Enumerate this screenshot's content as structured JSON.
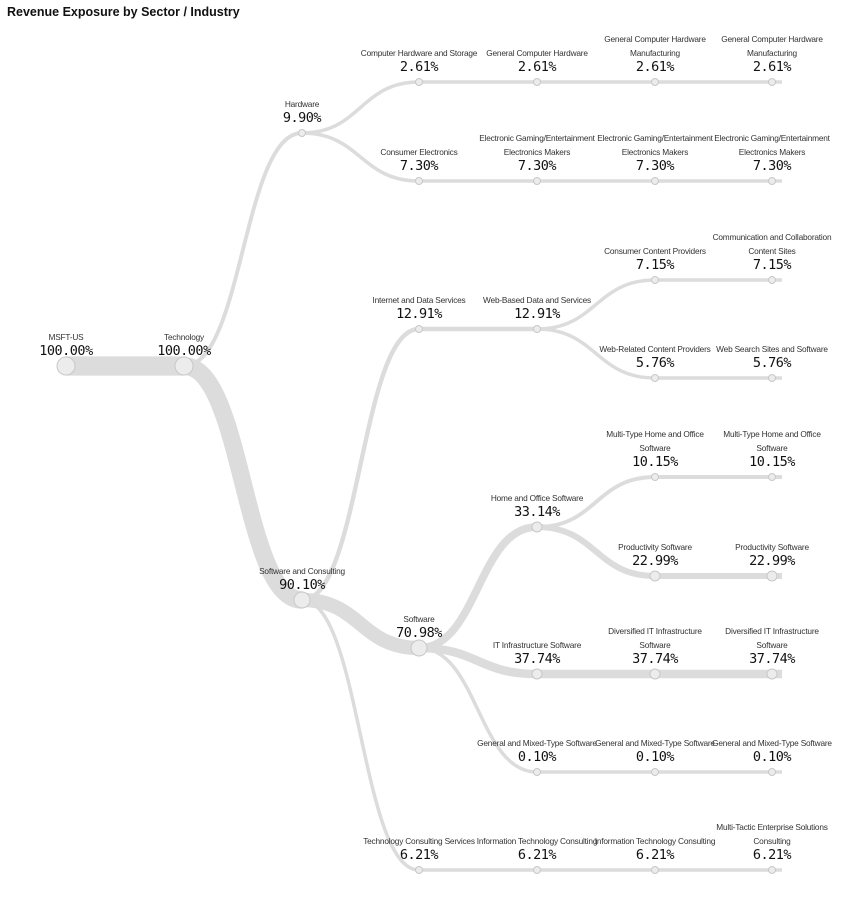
{
  "title": "Revenue Exposure by Sector / Industry",
  "tree": [
    {
      "id": "msft",
      "name": "MSFT-US",
      "value": "100.00%",
      "weight": 100,
      "parent": null
    },
    {
      "id": "tech",
      "name": "Technology",
      "value": "100.00%",
      "weight": 100,
      "parent": "msft"
    },
    {
      "id": "hw",
      "name": "Hardware",
      "value": "9.90%",
      "weight": 9.9,
      "parent": "tech"
    },
    {
      "id": "sc",
      "name": "Software and Consulting",
      "value": "90.10%",
      "weight": 90.1,
      "parent": "tech"
    },
    {
      "id": "chs",
      "name": "Computer Hardware and Storage",
      "value": "2.61%",
      "weight": 2.61,
      "parent": "hw"
    },
    {
      "id": "ce",
      "name": "Consumer Electronics",
      "value": "7.30%",
      "weight": 7.3,
      "parent": "hw"
    },
    {
      "id": "ids",
      "name": "Internet and Data Services",
      "value": "12.91%",
      "weight": 12.91,
      "parent": "sc"
    },
    {
      "id": "sw",
      "name": "Software",
      "value": "70.98%",
      "weight": 70.98,
      "parent": "sc"
    },
    {
      "id": "tcs",
      "name": "Technology Consulting Services",
      "value": "6.21%",
      "weight": 6.21,
      "parent": "sc"
    },
    {
      "id": "gch",
      "name": "General Computer Hardware",
      "value": "2.61%",
      "weight": 2.61,
      "parent": "chs"
    },
    {
      "id": "egem",
      "name": "Electronic Gaming/Entertainment Electronics Makers",
      "value": "7.30%",
      "weight": 7.3,
      "parent": "ce"
    },
    {
      "id": "wbds",
      "name": "Web-Based Data and Services",
      "value": "12.91%",
      "weight": 12.91,
      "parent": "ids"
    },
    {
      "id": "hos",
      "name": "Home and Office Software",
      "value": "33.14%",
      "weight": 33.14,
      "parent": "sw"
    },
    {
      "id": "itis",
      "name": "IT Infrastructure Software",
      "value": "37.74%",
      "weight": 37.74,
      "parent": "sw"
    },
    {
      "id": "gmts",
      "name": "General and Mixed-Type Software",
      "value": "0.10%",
      "weight": 0.1,
      "parent": "sw"
    },
    {
      "id": "itc",
      "name": "Information Technology Consulting",
      "value": "6.21%",
      "weight": 6.21,
      "parent": "tcs"
    },
    {
      "id": "gchm1",
      "name": "General Computer Hardware Manufacturing",
      "value": "2.61%",
      "weight": 2.61,
      "parent": "gch"
    },
    {
      "id": "egem2",
      "name": "Electronic Gaming/Entertainment Electronics Makers",
      "value": "7.30%",
      "weight": 7.3,
      "parent": "egem"
    },
    {
      "id": "ccp",
      "name": "Consumer Content Providers",
      "value": "7.15%",
      "weight": 7.15,
      "parent": "wbds"
    },
    {
      "id": "wrcp",
      "name": "Web-Related Content Providers",
      "value": "5.76%",
      "weight": 5.76,
      "parent": "wbds"
    },
    {
      "id": "mth1",
      "name": "Multi-Type Home and Office Software",
      "value": "10.15%",
      "weight": 10.15,
      "parent": "hos"
    },
    {
      "id": "prod1",
      "name": "Productivity Software",
      "value": "22.99%",
      "weight": 22.99,
      "parent": "hos"
    },
    {
      "id": "dit1",
      "name": "Diversified IT Infrastructure Software",
      "value": "37.74%",
      "weight": 37.74,
      "parent": "itis"
    },
    {
      "id": "gmts2",
      "name": "General and Mixed-Type Software",
      "value": "0.10%",
      "weight": 0.1,
      "parent": "gmts"
    },
    {
      "id": "itc2",
      "name": "Information Technology Consulting",
      "value": "6.21%",
      "weight": 6.21,
      "parent": "itc"
    },
    {
      "id": "gchm2",
      "name": "General Computer Hardware Manufacturing",
      "value": "2.61%",
      "weight": 2.61,
      "parent": "gchm1"
    },
    {
      "id": "egem3",
      "name": "Electronic Gaming/Entertainment Electronics Makers",
      "value": "7.30%",
      "weight": 7.3,
      "parent": "egem2"
    },
    {
      "id": "ccs",
      "name": "Communication and Collaboration Content Sites",
      "value": "7.15%",
      "weight": 7.15,
      "parent": "ccp"
    },
    {
      "id": "wss",
      "name": "Web Search Sites and Software",
      "value": "5.76%",
      "weight": 5.76,
      "parent": "wrcp"
    },
    {
      "id": "mth2",
      "name": "Multi-Type Home and Office Software",
      "value": "10.15%",
      "weight": 10.15,
      "parent": "mth1"
    },
    {
      "id": "prod2",
      "name": "Productivity Software",
      "value": "22.99%",
      "weight": 22.99,
      "parent": "prod1"
    },
    {
      "id": "dit2",
      "name": "Diversified IT Infrastructure Software",
      "value": "37.74%",
      "weight": 37.74,
      "parent": "dit1"
    },
    {
      "id": "gmts3",
      "name": "General and Mixed-Type Software",
      "value": "0.10%",
      "weight": 0.1,
      "parent": "gmts2"
    },
    {
      "id": "mtes",
      "name": "Multi-Tactic Enterprise Solutions Consulting",
      "value": "6.21%",
      "weight": 6.21,
      "parent": "itc2"
    }
  ]
}
